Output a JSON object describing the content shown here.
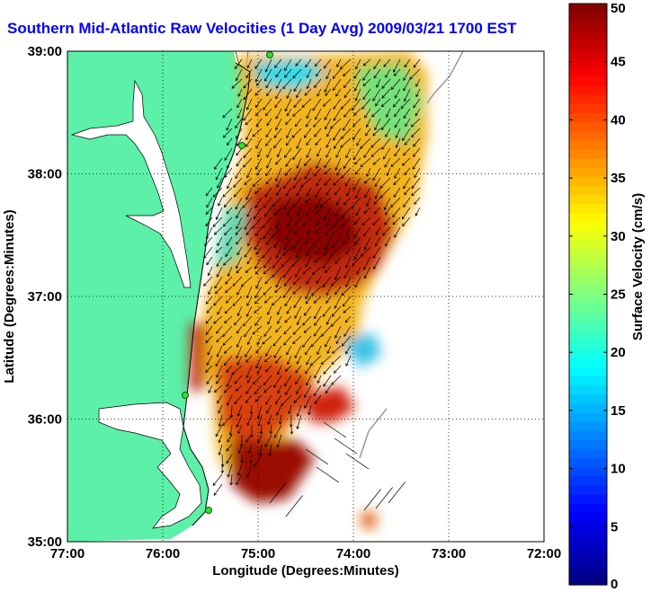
{
  "title": "Southern Mid-Atlantic Raw Velocities (1 Day Avg) 2009/03/21 1700 EST",
  "colors": {
    "land": "#5cf0a8",
    "coast": "#000000",
    "grid": "#000000"
  },
  "chart_data": {
    "type": "heatmap",
    "title": "Southern Mid-Atlantic Raw Velocities (1 Day Avg) 2009/03/21 1700 EST",
    "xlabel": "Longitude (Degrees:Minutes)",
    "ylabel": "Latitude (Degrees:Minutes)",
    "xlim": [
      -77,
      -72
    ],
    "ylim": [
      35,
      39
    ],
    "xticks": [
      -77,
      -76,
      -75,
      -74,
      -73,
      -72
    ],
    "xtick_labels": [
      "77:00",
      "76:00",
      "75:00",
      "74:00",
      "73:00",
      "72:00"
    ],
    "yticks": [
      35,
      36,
      37,
      38,
      39
    ],
    "ytick_labels": [
      "35:00",
      "36:00",
      "37:00",
      "38:00",
      "39:00"
    ],
    "grid": true,
    "grid_style": "dotted",
    "colorbar": {
      "label": "Surface Velocity (cm/s)",
      "range": [
        0,
        50
      ],
      "ticks": [
        0,
        5,
        10,
        15,
        20,
        25,
        30,
        35,
        40,
        45,
        50
      ],
      "colormap": "jet"
    },
    "field_summary": {
      "quantity": "surface velocity (cm/s)",
      "high_speed_region": "central shelf between 36.3 and 38.2 N, ~40-50 cm/s",
      "low_speed_regions": [
        "near 38.9 N off Delaware Bay, ~10-15 cm/s",
        "near 36.6 N, 74.5 W, ~10-20 cm/s"
      ],
      "dominant_flow": "southwestward along shelf, turning offshore southeastward near Cape Hatteras"
    }
  }
}
